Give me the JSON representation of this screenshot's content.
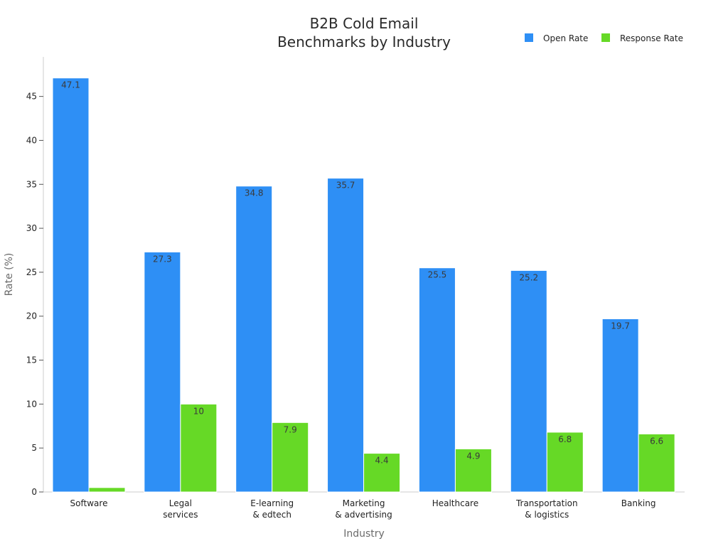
{
  "chart_data": {
    "type": "bar",
    "title": [
      "B2B Cold Email",
      "Benchmarks by Industry"
    ],
    "xlabel": "Industry",
    "ylabel": "Rate (%)",
    "categories": [
      [
        "Software"
      ],
      [
        "Legal",
        "services"
      ],
      [
        "E-learning",
        "& edtech"
      ],
      [
        "Marketing",
        "& advertising"
      ],
      [
        "Healthcare"
      ],
      [
        "Transportation",
        "& logistics"
      ],
      [
        "Banking"
      ]
    ],
    "series": [
      {
        "name": "Open Rate",
        "color": "#2E8FF5",
        "values": [
          47.1,
          27.3,
          34.8,
          35.7,
          25.5,
          25.2,
          19.7
        ],
        "labels": [
          "47.1",
          "27.3",
          "34.8",
          "35.7",
          "25.5",
          "25.2",
          "19.7"
        ]
      },
      {
        "name": "Response Rate",
        "color": "#66D926",
        "values": [
          0.5,
          10,
          7.9,
          4.4,
          4.9,
          6.8,
          6.6
        ],
        "labels": [
          "",
          "10",
          "7.9",
          "4.4",
          "4.9",
          "6.8",
          "6.6"
        ]
      }
    ],
    "yticks": [
      0,
      5,
      10,
      15,
      20,
      25,
      30,
      35,
      40,
      45
    ],
    "ylim": [
      0,
      49.5
    ],
    "grid": false,
    "legend_position": "top-right"
  }
}
